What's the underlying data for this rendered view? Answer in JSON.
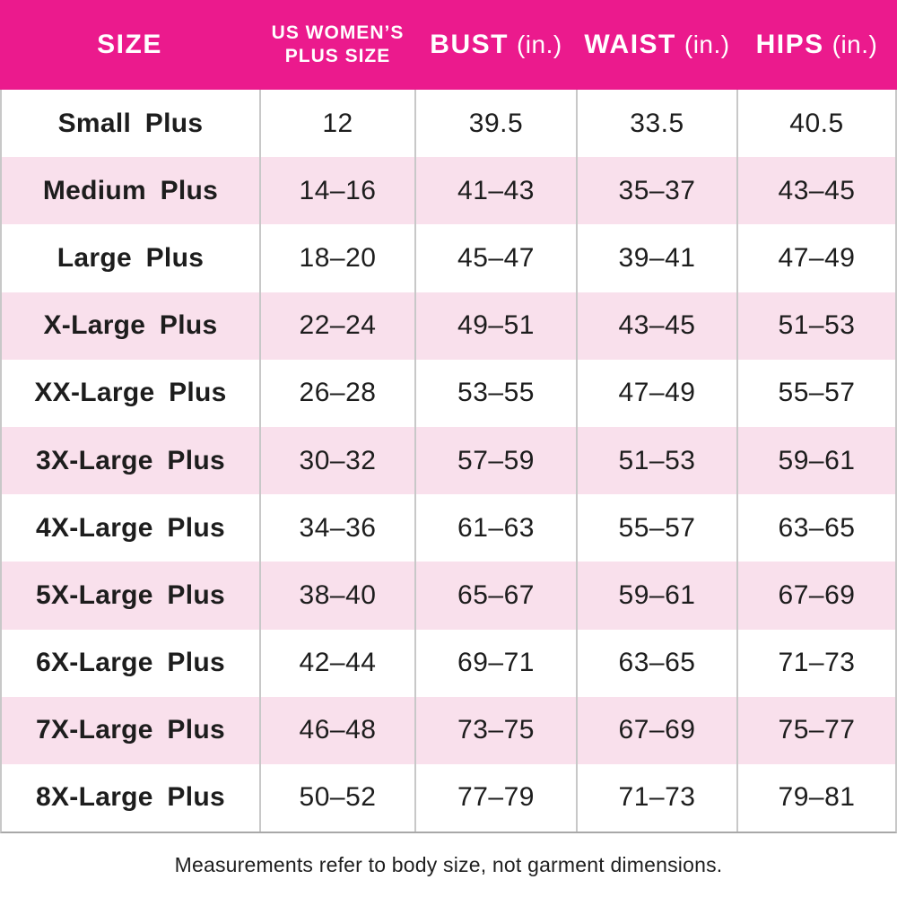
{
  "chart_data": {
    "type": "table",
    "columns": [
      {
        "label": "SIZE"
      },
      {
        "line1": "US WOMEN’S",
        "line2": "PLUS SIZE"
      },
      {
        "label": "BUST",
        "unit": "(in.)"
      },
      {
        "label": "WAIST",
        "unit": "(in.)"
      },
      {
        "label": "HIPS",
        "unit": "(in.)"
      }
    ],
    "rows": [
      {
        "size": "Small Plus",
        "us": "12",
        "bust": "39.5",
        "waist": "33.5",
        "hips": "40.5"
      },
      {
        "size": "Medium Plus",
        "us": "14–16",
        "bust": "41–43",
        "waist": "35–37",
        "hips": "43–45"
      },
      {
        "size": "Large Plus",
        "us": "18–20",
        "bust": "45–47",
        "waist": "39–41",
        "hips": "47–49"
      },
      {
        "size": "X-Large Plus",
        "us": "22–24",
        "bust": "49–51",
        "waist": "43–45",
        "hips": "51–53"
      },
      {
        "size": "XX-Large Plus",
        "us": "26–28",
        "bust": "53–55",
        "waist": "47–49",
        "hips": "55–57"
      },
      {
        "size": "3X-Large Plus",
        "us": "30–32",
        "bust": "57–59",
        "waist": "51–53",
        "hips": "59–61"
      },
      {
        "size": "4X-Large Plus",
        "us": "34–36",
        "bust": "61–63",
        "waist": "55–57",
        "hips": "63–65"
      },
      {
        "size": "5X-Large Plus",
        "us": "38–40",
        "bust": "65–67",
        "waist": "59–61",
        "hips": "67–69"
      },
      {
        "size": "6X-Large Plus",
        "us": "42–44",
        "bust": "69–71",
        "waist": "63–65",
        "hips": "71–73"
      },
      {
        "size": "7X-Large Plus",
        "us": "46–48",
        "bust": "73–75",
        "waist": "67–69",
        "hips": "75–77"
      },
      {
        "size": "8X-Large Plus",
        "us": "50–52",
        "bust": "77–79",
        "waist": "71–73",
        "hips": "79–81"
      }
    ],
    "footnote": "Measurements refer to body size, not garment dimensions."
  },
  "colors": {
    "header_bg": "#EB1A8D",
    "header_text": "#FFFFFF",
    "row_bg": "#FFFFFF",
    "row_alt_bg": "#F9E0EC",
    "divider": "#C8C8C8",
    "bottom_border": "#A8A8A8",
    "text": "#1D1D1D"
  }
}
